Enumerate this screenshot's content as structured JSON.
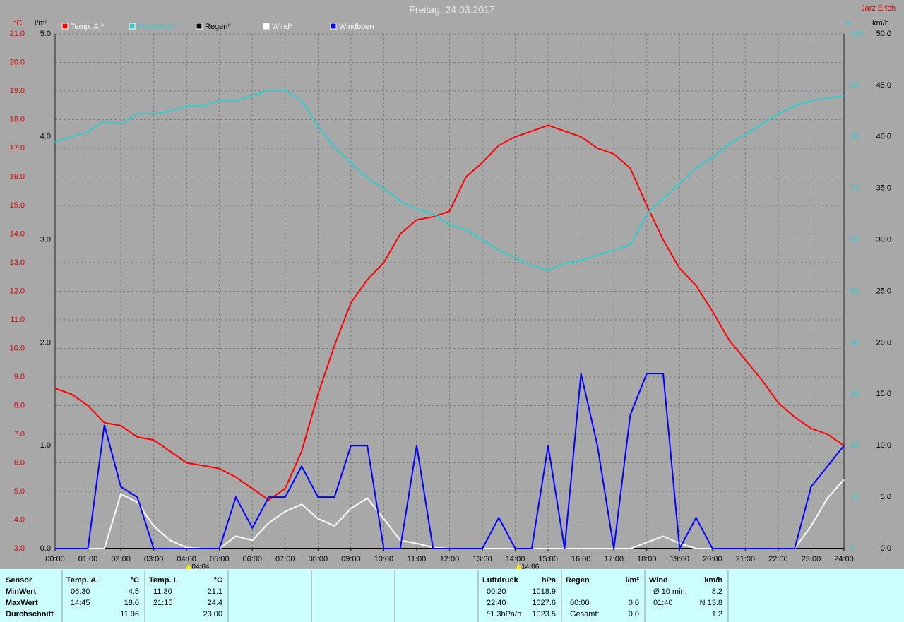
{
  "chart_data": {
    "type": "line",
    "title": "Freitag, 24.03.2017",
    "subtitle": "Jarz Erich",
    "ylabel": "°C",
    "y2label": "%",
    "y3label": "l/m²",
    "y4label": "km/h",
    "x": [
      0,
      0.5,
      1,
      1.5,
      2,
      2.5,
      3,
      3.5,
      4,
      4.5,
      5,
      5.5,
      6,
      6.5,
      7,
      7.5,
      8,
      8.5,
      9,
      9.5,
      10,
      10.5,
      11,
      11.5,
      12,
      12.5,
      13,
      13.5,
      14,
      14.5,
      15,
      15.5,
      16,
      16.5,
      17,
      17.5,
      18,
      18.5,
      19,
      19.5,
      20,
      20.5,
      21,
      21.5,
      22,
      22.5,
      23,
      23.5,
      24
    ],
    "xlim": [
      0,
      24
    ],
    "xticks": [
      {
        "value": 0,
        "label": "00:00"
      },
      {
        "value": 1,
        "label": "01:00"
      },
      {
        "value": 2,
        "label": "02:00"
      },
      {
        "value": 3,
        "label": "03:00"
      },
      {
        "value": 4,
        "label": "04:00"
      },
      {
        "value": 5,
        "label": "05:00"
      },
      {
        "value": 6,
        "label": "06:00"
      },
      {
        "value": 7,
        "label": "07:00"
      },
      {
        "value": 8,
        "label": "08:00"
      },
      {
        "value": 9,
        "label": "09:00"
      },
      {
        "value": 10,
        "label": "10:00"
      },
      {
        "value": 11,
        "label": "11:00"
      },
      {
        "value": 12,
        "label": "12:00"
      },
      {
        "value": 13,
        "label": "13:00"
      },
      {
        "value": 14,
        "label": "14:00"
      },
      {
        "value": 15,
        "label": "15:00"
      },
      {
        "value": 16,
        "label": "16:00"
      },
      {
        "value": 17,
        "label": "17:00"
      },
      {
        "value": 18,
        "label": "18:00"
      },
      {
        "value": 19,
        "label": "19:00"
      },
      {
        "value": 20,
        "label": "20:00"
      },
      {
        "value": 21,
        "label": "21:00"
      },
      {
        "value": 22,
        "label": "22:00"
      },
      {
        "value": 23,
        "label": "23:00"
      },
      {
        "value": 24,
        "label": "24:00"
      }
    ],
    "ylim": [
      3,
      21
    ],
    "yticks": [
      {
        "value": 3,
        "label": "3.0"
      },
      {
        "value": 4,
        "label": "4.0"
      },
      {
        "value": 5,
        "label": "5.0"
      },
      {
        "value": 6,
        "label": "6.0"
      },
      {
        "value": 7,
        "label": "7.0"
      },
      {
        "value": 8,
        "label": "8.0"
      },
      {
        "value": 9,
        "label": "9.0"
      },
      {
        "value": 10,
        "label": "10.0"
      },
      {
        "value": 11,
        "label": "11.0"
      },
      {
        "value": 12,
        "label": "12.0"
      },
      {
        "value": 13,
        "label": "13.0"
      },
      {
        "value": 14,
        "label": "14.0"
      },
      {
        "value": 15,
        "label": "15.0"
      },
      {
        "value": 16,
        "label": "16.0"
      },
      {
        "value": 17,
        "label": "17.0"
      },
      {
        "value": 18,
        "label": "18.0"
      },
      {
        "value": 19,
        "label": "19.0"
      },
      {
        "value": 20,
        "label": "20.0"
      },
      {
        "value": 21,
        "label": "21.0"
      }
    ],
    "y2lim": [
      0,
      100
    ],
    "y2ticks": [
      0,
      10,
      20,
      30,
      40,
      50,
      60,
      70,
      80,
      90,
      100
    ],
    "y3lim": [
      0,
      5
    ],
    "y3ticks": [
      {
        "value": 0,
        "label": "0.0"
      },
      {
        "value": 1,
        "label": "1.0"
      },
      {
        "value": 2,
        "label": "2.0"
      },
      {
        "value": 3,
        "label": "3.0"
      },
      {
        "value": 4,
        "label": "4.0"
      },
      {
        "value": 5,
        "label": "5.0"
      }
    ],
    "y4lim": [
      0,
      50
    ],
    "y4ticks": [
      {
        "value": 0,
        "label": "0.0"
      },
      {
        "value": 5,
        "label": "5.0"
      },
      {
        "value": 10,
        "label": "10.0"
      },
      {
        "value": 15,
        "label": "15.0"
      },
      {
        "value": 20,
        "label": "20.0"
      },
      {
        "value": 25,
        "label": "25.0"
      },
      {
        "value": 30,
        "label": "30.0"
      },
      {
        "value": 35,
        "label": "35.0"
      },
      {
        "value": 40,
        "label": "40.0"
      },
      {
        "value": 45,
        "label": "45.0"
      },
      {
        "value": 50,
        "label": "50.0"
      }
    ],
    "grid": true,
    "series": [
      {
        "name": "Temp. A.*",
        "color": "#ff0000",
        "axis": "y",
        "values": [
          8.6,
          8.4,
          8.0,
          7.4,
          7.3,
          6.9,
          6.8,
          6.4,
          6.0,
          5.9,
          5.8,
          5.5,
          5.1,
          4.7,
          5.1,
          6.4,
          8.4,
          10.1,
          11.6,
          12.4,
          13.0,
          14.0,
          14.5,
          14.6,
          14.8,
          16.0,
          16.5,
          17.1,
          17.4,
          17.6,
          17.8,
          17.6,
          17.4,
          17.0,
          16.8,
          16.3,
          15.0,
          13.8,
          12.8,
          12.2,
          11.3,
          10.3,
          9.6,
          8.9,
          8.1,
          7.6,
          7.2,
          7.0,
          6.6
        ]
      },
      {
        "name": "Feuchte A.*",
        "color": "#33cccc",
        "axis": "y2",
        "values": [
          79,
          80,
          81,
          83,
          82.5,
          84.5,
          84.5,
          85,
          86,
          86,
          87,
          87,
          88,
          89,
          89,
          87,
          82,
          78,
          75,
          72,
          70,
          67.5,
          66,
          65,
          63,
          62,
          60,
          58,
          56.5,
          55,
          54,
          55.5,
          56,
          57,
          58,
          59,
          65,
          68,
          71,
          74,
          76,
          78.5,
          80.5,
          82.5,
          84.5,
          86,
          87,
          87.5,
          88
        ]
      },
      {
        "name": "Regen*",
        "color": "#000000",
        "axis": "y3",
        "values": [
          0,
          0,
          0,
          0,
          0,
          0,
          0,
          0,
          0,
          0,
          0,
          0,
          0,
          0,
          0,
          0,
          0,
          0,
          0,
          0,
          0,
          0,
          0,
          0,
          0,
          0,
          0,
          0,
          0,
          0,
          0,
          0,
          0,
          0,
          0,
          0,
          0,
          0,
          0,
          0,
          0,
          0,
          0,
          0,
          0,
          0,
          0,
          0,
          0
        ]
      },
      {
        "name": "Wind*",
        "color": "#ffffff",
        "axis": "y4",
        "values": [
          0,
          0,
          0,
          0,
          5.3,
          4.5,
          2.2,
          0.8,
          0.1,
          0,
          0,
          1.2,
          0.8,
          2.5,
          3.6,
          4.3,
          2.9,
          2.2,
          3.9,
          4.9,
          2.9,
          0.8,
          0.5,
          0.1,
          0,
          0,
          0,
          0,
          0,
          0,
          0,
          0,
          0,
          0,
          0,
          0,
          0.6,
          1.2,
          0.5,
          0,
          0,
          0,
          0,
          0,
          0,
          0,
          2.2,
          4.9,
          6.7
        ]
      },
      {
        "name": "Windböen",
        "color": "#0000ff",
        "axis": "y4",
        "values": [
          0,
          0,
          0,
          12,
          6,
          5,
          0,
          0,
          0,
          0,
          0,
          5,
          2,
          5,
          5,
          8,
          5,
          5,
          10,
          10,
          0,
          0,
          10,
          0,
          0,
          0,
          0,
          3,
          0,
          0,
          10,
          0,
          17,
          10,
          0,
          13,
          17,
          17,
          0,
          3,
          0,
          0,
          0,
          0,
          0,
          0,
          6,
          8,
          10
        ]
      }
    ],
    "annotations": [
      {
        "x": 4.07,
        "label": "04:04"
      },
      {
        "x": 14.1,
        "label": "14:06"
      }
    ]
  },
  "table": {
    "rows": [
      [
        {
          "l": "Sensor"
        },
        {
          "l": "Temp. A.",
          "r": "°C"
        },
        {
          "l": "Temp. I.",
          "r": "°C"
        },
        null,
        null,
        null,
        {
          "l": "Luftdruck",
          "r": "hPa"
        },
        {
          "l": "Regen",
          "r": "l/m²"
        },
        {
          "l": "Wind",
          "r": "km/h"
        }
      ],
      [
        {
          "l": "MinWert"
        },
        {
          "l": "06:30",
          "r": "4.5"
        },
        {
          "l": "11:30",
          "r": "21.1"
        },
        null,
        null,
        null,
        {
          "l": "00:20",
          "r": "1018.9"
        },
        null,
        {
          "l": "Ø 10 min.",
          "r": "8.2"
        }
      ],
      [
        {
          "l": "MaxWert"
        },
        {
          "l": "14:45",
          "r": "18.0"
        },
        {
          "l": "21:15",
          "r": "24.4"
        },
        null,
        null,
        null,
        {
          "l": "22:40",
          "r": "1027.6"
        },
        {
          "l": "00:00",
          "r": "0.0"
        },
        {
          "l": "01:40",
          "r": "N 13.8"
        }
      ],
      [
        {
          "l": "Durchschnitt"
        },
        {
          "r": "11.06"
        },
        {
          "r": "23.00"
        },
        null,
        null,
        null,
        {
          "l": "^1.3hPa/h",
          "r": "1023.5"
        },
        {
          "l": "Gesamt:",
          "r": "0.0"
        },
        {
          "r": "1.2"
        }
      ]
    ]
  }
}
